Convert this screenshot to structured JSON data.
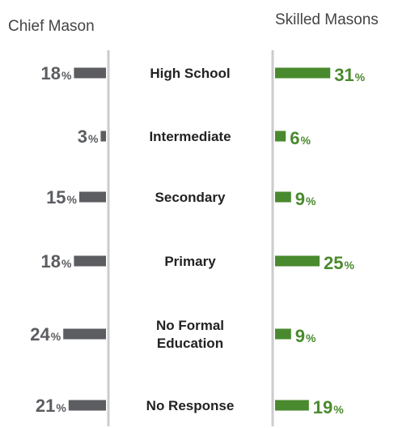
{
  "chart_data": {
    "type": "bar",
    "left_label": "Chief Mason",
    "right_label": "Skilled Masons",
    "categories": [
      "High School",
      "Intermediate",
      "Secondary",
      "Primary",
      "No Formal Education",
      "No Response"
    ],
    "category_lines": [
      [
        "High School"
      ],
      [
        "Intermediate"
      ],
      [
        "Secondary"
      ],
      [
        "Primary"
      ],
      [
        "No Formal",
        "Education"
      ],
      [
        "No Response"
      ]
    ],
    "series": [
      {
        "name": "Chief Mason",
        "values": [
          18,
          3,
          15,
          18,
          24,
          21
        ],
        "color": "#5b5d61"
      },
      {
        "name": "Skilled Masons",
        "values": [
          31,
          6,
          9,
          25,
          9,
          19
        ],
        "color": "#4a8a2e"
      }
    ],
    "unit": "%"
  }
}
